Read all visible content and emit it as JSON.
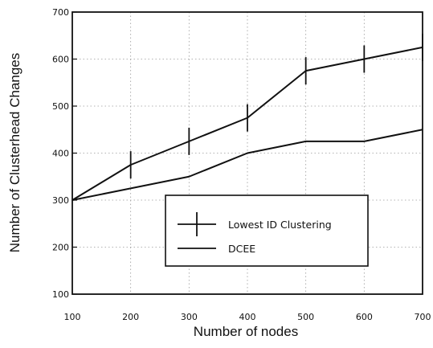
{
  "chart_data": {
    "type": "line",
    "title": "",
    "xlabel": "Number of nodes",
    "ylabel": "Number of Clusterhead Changes",
    "x": [
      100,
      200,
      300,
      400,
      500,
      600,
      700
    ],
    "xlim": [
      100,
      700
    ],
    "ylim": [
      100,
      700
    ],
    "xticks": [
      "100",
      "200",
      "300",
      "400",
      "500",
      "600",
      "700"
    ],
    "yticks": [
      "100",
      "200",
      "300",
      "400",
      "500",
      "600",
      "700"
    ],
    "grid": "dotted",
    "legend_position": "lower-right",
    "series": [
      {
        "name": "Lowest ID Clustering",
        "values": [
          300,
          375,
          425,
          475,
          575,
          600,
          625
        ],
        "marker": "vertical error bars",
        "color": "#111111"
      },
      {
        "name": "DCEE",
        "values": [
          300,
          325,
          350,
          400,
          425,
          425,
          450
        ],
        "marker": "none",
        "color": "#111111"
      }
    ]
  }
}
